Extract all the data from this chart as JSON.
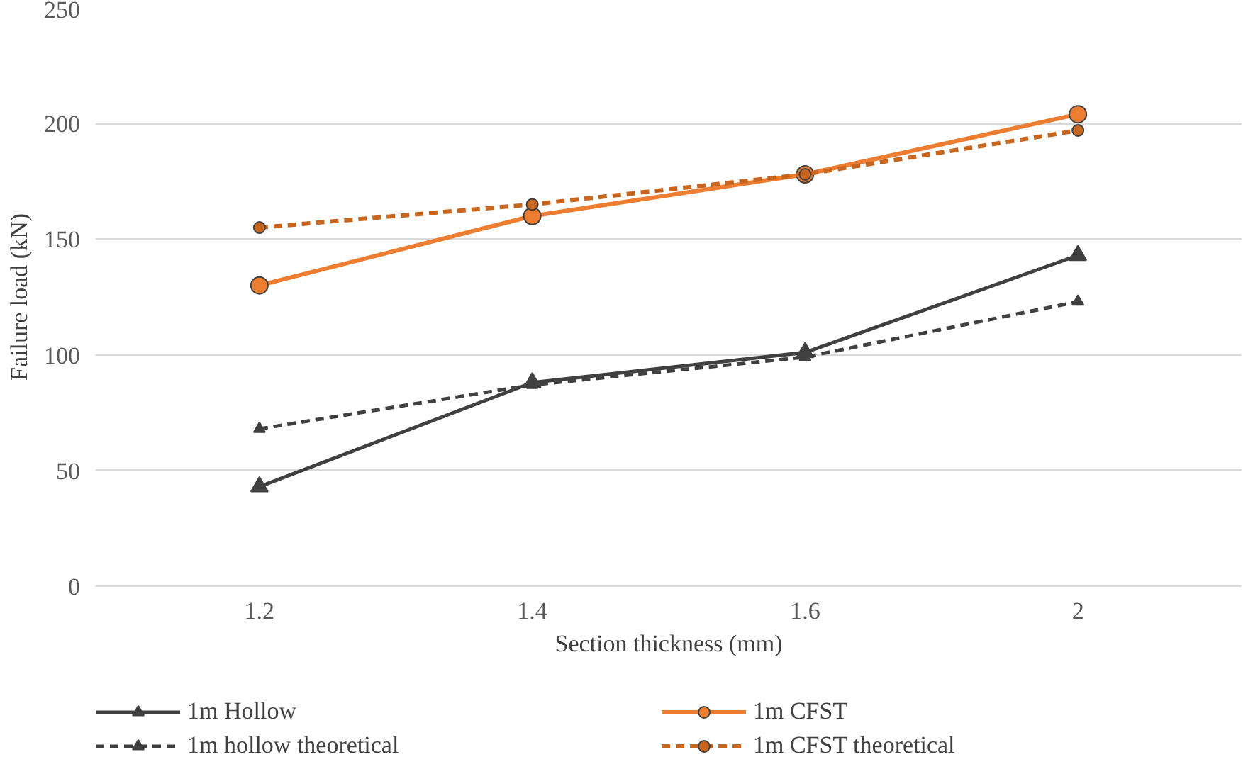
{
  "chart_data": {
    "type": "line",
    "xlabel": "Section thickness (mm)",
    "ylabel": "Failure load (kN)",
    "categories": [
      "1.2",
      "1.4",
      "1.6",
      "2"
    ],
    "series": [
      {
        "name": "1m Hollow",
        "color": "#404040",
        "values": [
          43,
          88,
          101,
          143
        ],
        "marker": "triangle",
        "line_style": "solid"
      },
      {
        "name": "1m CFST",
        "color": "#ed7d31",
        "values": [
          130,
          160,
          178,
          204
        ],
        "marker": "circle",
        "line_style": "solid"
      },
      {
        "name": "1m hollow theoretical",
        "color": "#404040",
        "values": [
          68,
          87,
          99,
          123
        ],
        "marker": "triangle",
        "line_style": "dashed"
      },
      {
        "name": "1m CFST theoretical",
        "color": "#c8651e",
        "values": [
          155,
          165,
          178,
          197
        ],
        "marker": "circle",
        "line_style": "dashed"
      }
    ],
    "ylim": [
      0,
      250
    ],
    "yticks": [
      0,
      50,
      100,
      150,
      200,
      250
    ],
    "grid": "y",
    "legend": "bottom"
  }
}
